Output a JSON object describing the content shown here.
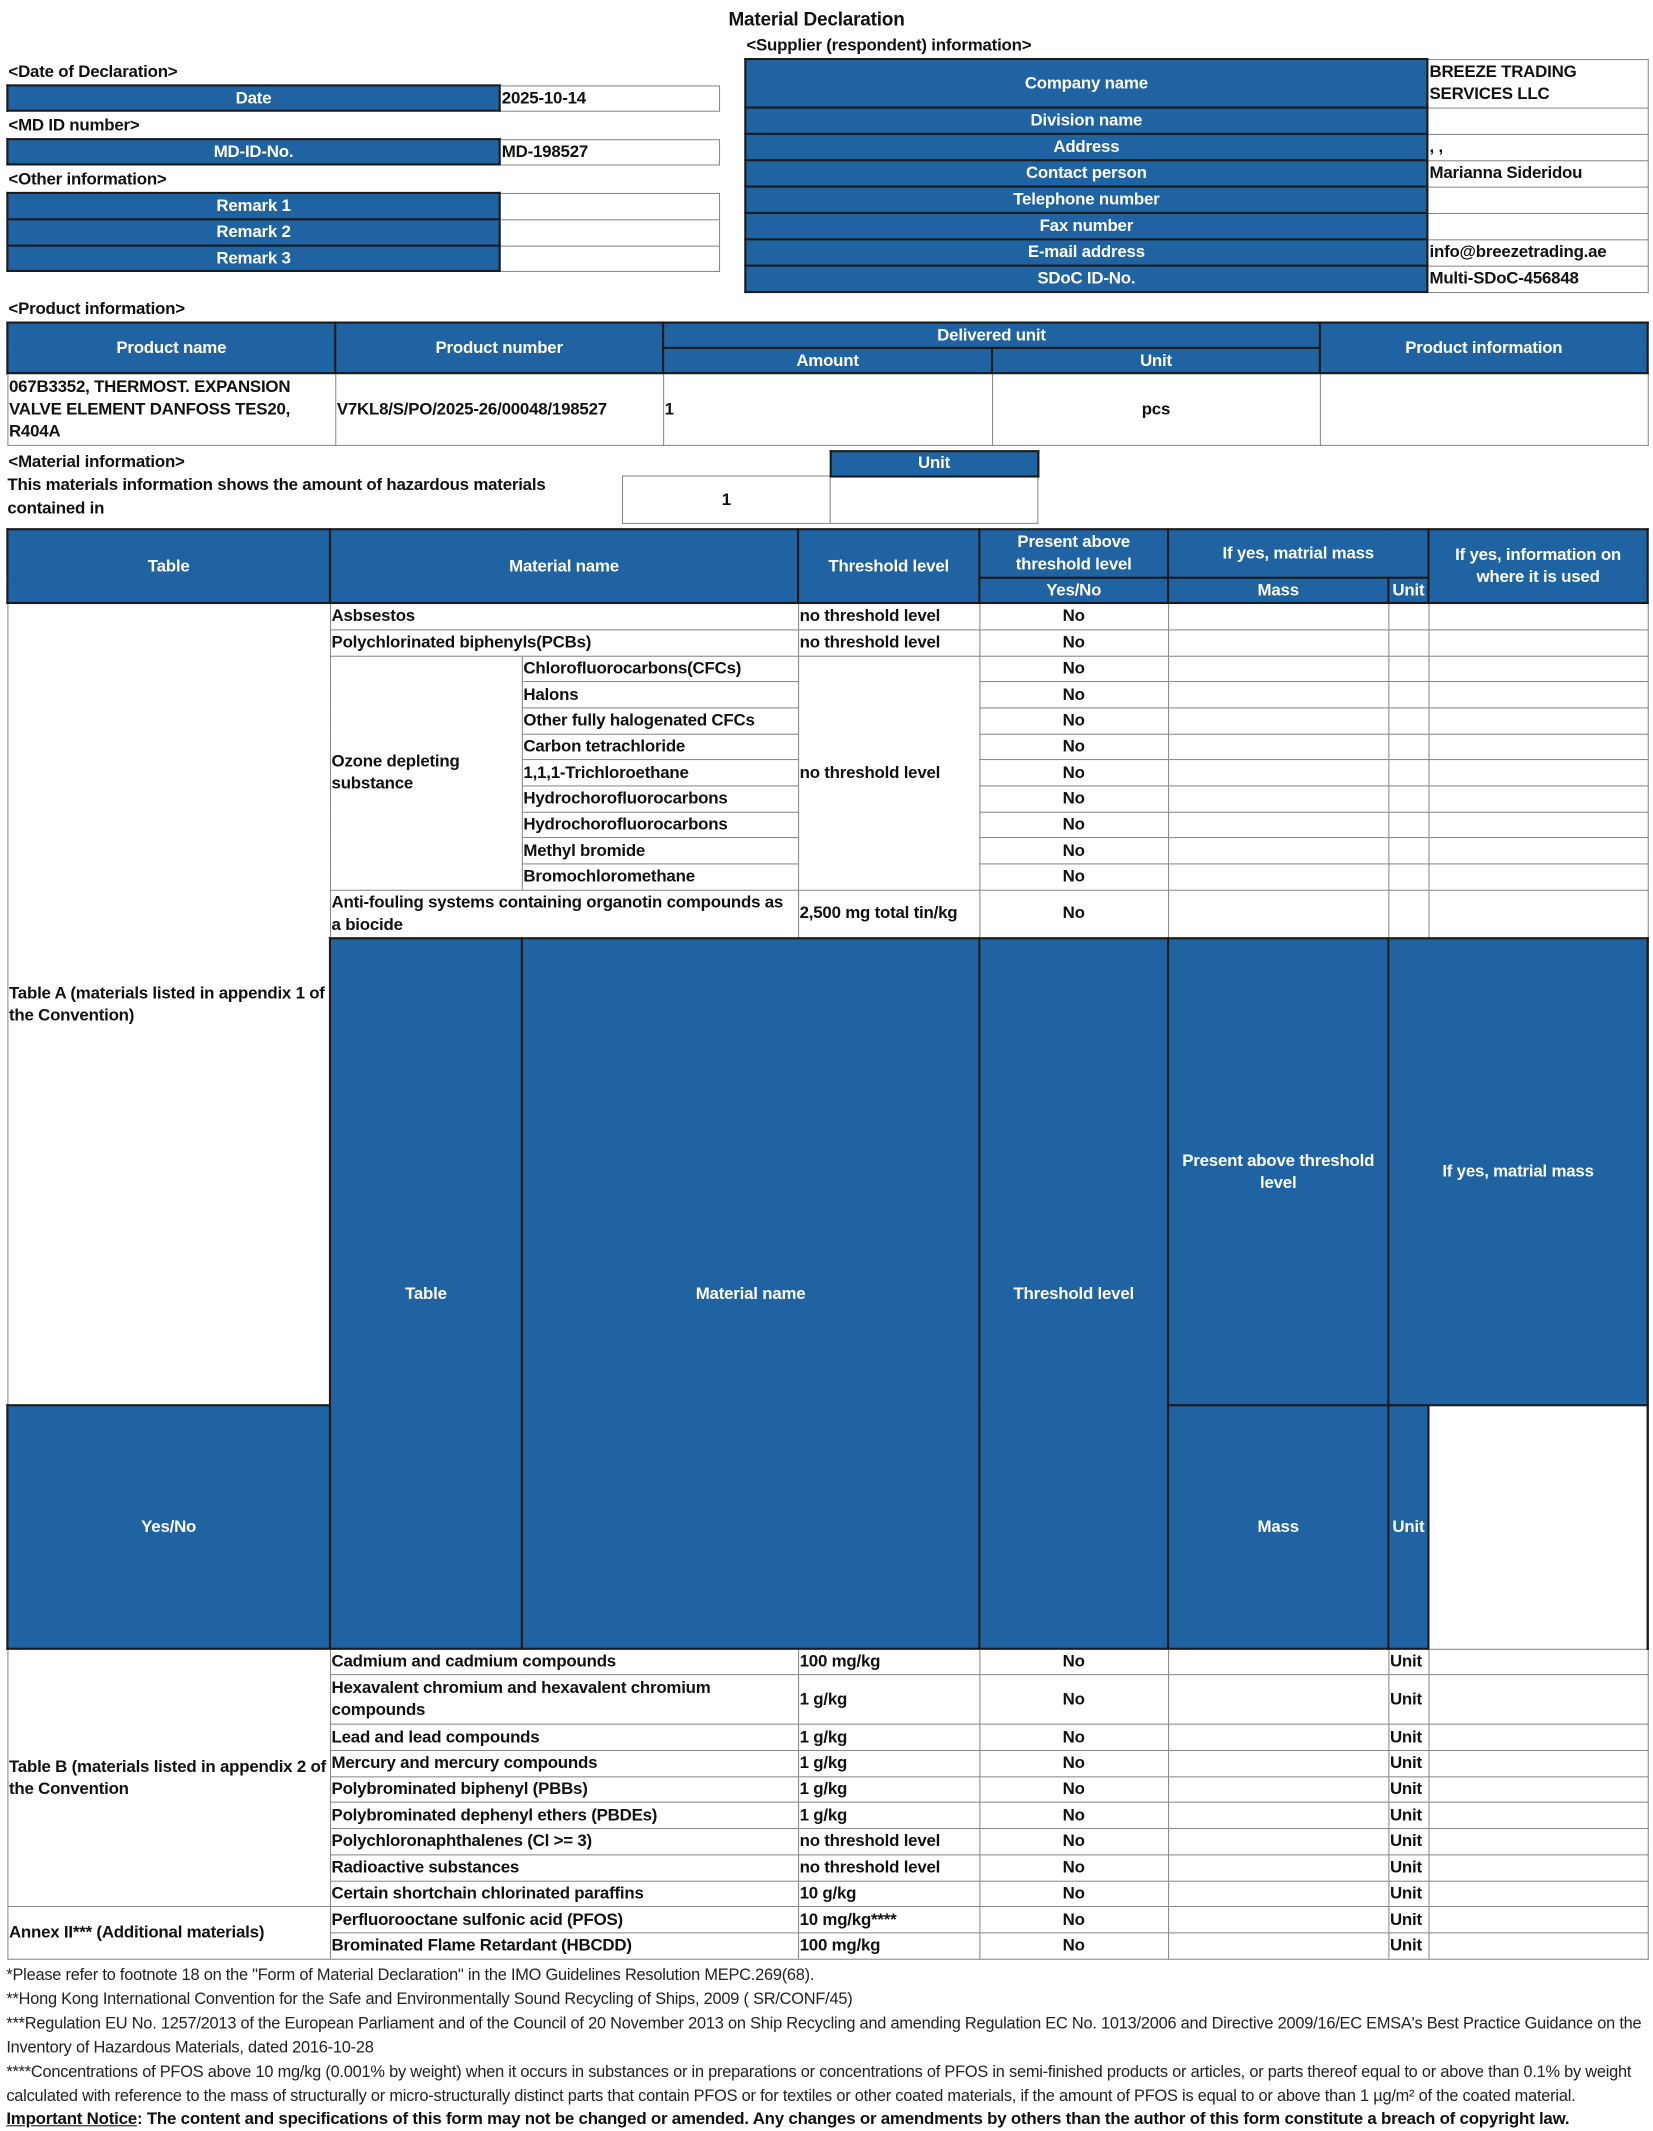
{
  "title": "Material Declaration",
  "date_section": {
    "heading": "<Date of Declaration>",
    "label": "Date",
    "value": "2025-10-14"
  },
  "md_section": {
    "heading": "<MD ID number>",
    "label": "MD-ID-No.",
    "value": "MD-198527"
  },
  "other_section": {
    "heading": "<Other information>",
    "remarks": [
      {
        "label": "Remark 1",
        "value": ""
      },
      {
        "label": "Remark 2",
        "value": ""
      },
      {
        "label": "Remark 3",
        "value": ""
      }
    ]
  },
  "supplier": {
    "heading": "<Supplier (respondent) information>",
    "rows": [
      {
        "label": "Company name",
        "value": "BREEZE TRADING SERVICES LLC"
      },
      {
        "label": "Division name",
        "value": ""
      },
      {
        "label": "Address",
        "value": ", ,"
      },
      {
        "label": "Contact person",
        "value": "Marianna Sideridou"
      },
      {
        "label": "Telephone number",
        "value": ""
      },
      {
        "label": "Fax number",
        "value": ""
      },
      {
        "label": "E-mail address",
        "value": "info@breezetrading.ae"
      },
      {
        "label": "SDoC ID-No.",
        "value": "Multi-SDoC-456848"
      }
    ]
  },
  "product": {
    "heading": "<Product information>",
    "headers": {
      "name": "Product name",
      "number": "Product number",
      "delivered": "Delivered unit",
      "amount": "Amount",
      "unit": "Unit",
      "info": "Product information"
    },
    "row": {
      "name": "067B3352, THERMOST. EXPANSION VALVE ELEMENT DANFOSS TES20, R404A",
      "number": "V7KL8/S/PO/2025-26/00048/198527",
      "amount": "1",
      "unit": "pcs",
      "info": ""
    }
  },
  "material_info": {
    "heading": "<Material information>",
    "text": "This materials information shows the amount of hazardous materials contained in",
    "amount": "1",
    "unit_header": "Unit",
    "unit": ""
  },
  "headers": {
    "table": "Table",
    "material": "Material name",
    "threshold": "Threshold level",
    "present": "Present above threshold level",
    "yesno": "Yes/No",
    "mass_group": "If yes, matrial mass",
    "mass": "Mass",
    "unit": "Unit",
    "info": "If yes, information on where it is used"
  },
  "table_a": {
    "label": "Table A (materials listed in appendix 1 of the Convention)",
    "asbestos": {
      "name": "Asbsestos",
      "threshold": "no threshold level",
      "present": "No"
    },
    "pcb": {
      "name": "Polychlorinated biphenyls(PCBs)",
      "threshold": "no threshold level",
      "present": "No"
    },
    "ozone": {
      "name": "Ozone depleting substance",
      "threshold": "no threshold level",
      "items": [
        {
          "name": "Chlorofluorocarbons(CFCs)",
          "present": "No"
        },
        {
          "name": "Halons",
          "present": "No"
        },
        {
          "name": "Other fully halogenated CFCs",
          "present": "No"
        },
        {
          "name": "Carbon tetrachloride",
          "present": "No"
        },
        {
          "name": "1,1,1-Trichloroethane",
          "present": "No"
        },
        {
          "name": "Hydrochorofluorocarbons",
          "present": "No"
        },
        {
          "name": "Hydrochorofluorocarbons",
          "present": "No"
        },
        {
          "name": "Methyl bromide",
          "present": "No"
        },
        {
          "name": "Bromochloromethane",
          "present": "No"
        }
      ]
    },
    "antifouling": {
      "name": "Anti-fouling systems containing organotin compounds as a biocide",
      "threshold": "2,500 mg total tin/kg",
      "present": "No"
    }
  },
  "table_b": {
    "label": "Table B (materials listed in appendix 2 of the Convention",
    "rows": [
      {
        "name": "Cadmium and cadmium compounds",
        "threshold": "100 mg/kg",
        "present": "No",
        "unit": "Unit"
      },
      {
        "name": "Hexavalent chromium and hexavalent chromium compounds",
        "threshold": "1 g/kg",
        "present": "No",
        "unit": "Unit"
      },
      {
        "name": "Lead and lead compounds",
        "threshold": "1 g/kg",
        "present": "No",
        "unit": "Unit"
      },
      {
        "name": "Mercury and mercury compounds",
        "threshold": "1 g/kg",
        "present": "No",
        "unit": "Unit"
      },
      {
        "name": "Polybrominated biphenyl (PBBs)",
        "threshold": "1 g/kg",
        "present": "No",
        "unit": "Unit"
      },
      {
        "name": "Polybrominated dephenyl ethers (PBDEs)",
        "threshold": "1 g/kg",
        "present": "No",
        "unit": "Unit"
      },
      {
        "name": "Polychloronaphthalenes (Cl >= 3)",
        "threshold": "no threshold level",
        "present": "No",
        "unit": "Unit"
      },
      {
        "name": "Radioactive substances",
        "threshold": "no threshold level",
        "present": "No",
        "unit": "Unit"
      },
      {
        "name": "Certain shortchain chlorinated paraffins",
        "threshold": "10 g/kg",
        "present": "No",
        "unit": "Unit"
      }
    ]
  },
  "annex": {
    "label": "Annex II*** (Additional materials)",
    "rows": [
      {
        "name": "Perfluorooctane sulfonic acid (PFOS)",
        "threshold": "10 mg/kg****",
        "present": "No",
        "unit": "Unit"
      },
      {
        "name": "Brominated Flame Retardant (HBCDD)",
        "threshold": "100 mg/kg",
        "present": "No",
        "unit": "Unit"
      }
    ]
  },
  "footnotes": [
    "*Please refer to footnote 18 on the \"Form of Material Declaration\" in the IMO Guidelines Resolution MEPC.269(68).",
    "**Hong Kong International Convention for the Safe and Environmentally Sound Recycling of Ships, 2009 ( SR/CONF/45)",
    "***Regulation EU No. 1257/2013 of the European Parliament and of the Council of 20 November 2013 on Ship Recycling and amending Regulation EC No. 1013/2006 and Directive 2009/16/EC EMSA's Best Practice Guidance on the Inventory of Hazardous Materials, dated 2016-10-28",
    "****Concentrations of PFOS above 10 mg/kg (0.001% by weight) when it occurs in substances or in preparations or concentrations of PFOS in semi-finished products or articles, or parts thereof equal to or above than 0.1% by weight calculated with reference to the mass of structurally or micro-structurally distinct parts that contain PFOS or for textiles or other coated materials, if the amount of PFOS is equal to or above than 1 µg/m² of the coated material."
  ],
  "notice": {
    "label": "Important Notice",
    "text": ": The content and specifications of this form may not be changed or amended. Any changes or amendments by others than the author of this form constitute a breach of copyright law."
  },
  "colors": {
    "header_blue": "#1f63a3"
  }
}
